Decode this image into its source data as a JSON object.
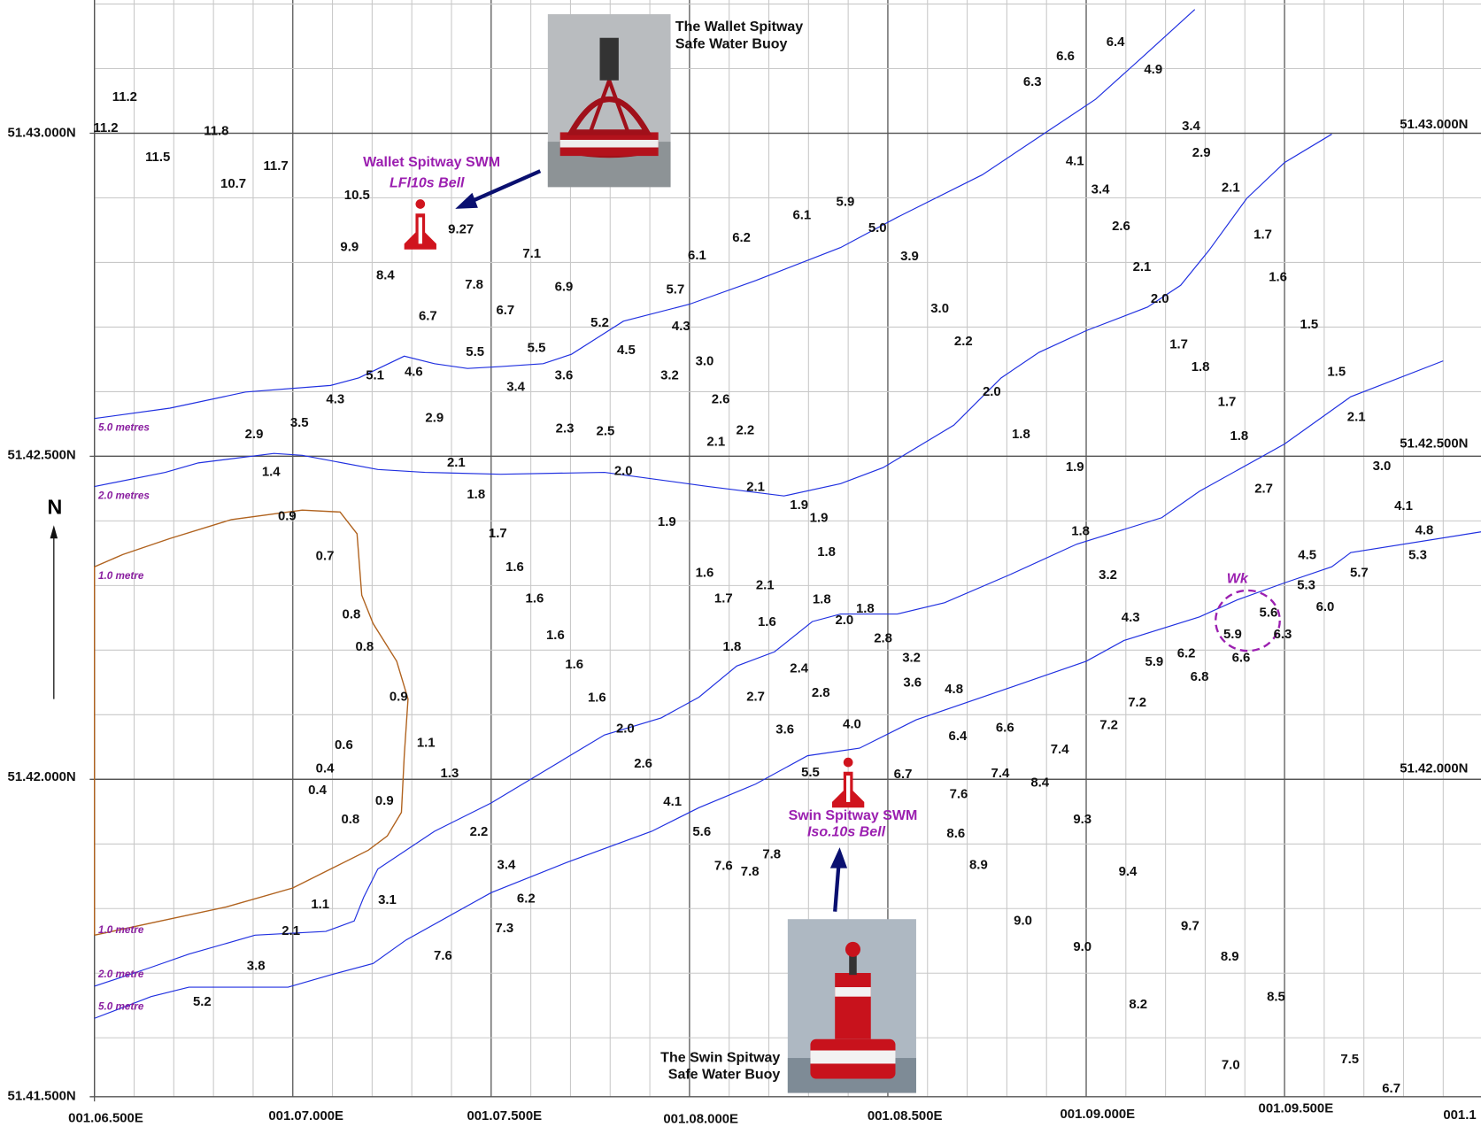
{
  "labels": {
    "lat_1": "51.43.000N",
    "lat_1_right": "51.43.000N",
    "lat_2": "51.42.500N",
    "lat_2_right": "51.42.500N",
    "lat_3": "51.42.000N",
    "lat_3_right": "51.42.000N",
    "lat_4": "51.41.500N",
    "lon_1": "001.06.500E",
    "lon_2": "001.07.000E",
    "lon_3": "001.07.500E",
    "lon_4": "001.08.000E",
    "lon_5": "001.08.500E",
    "lon_6": "001.09.000E",
    "lon_7": "001.09.500E",
    "lon_8": "001.1",
    "north": "N",
    "contour_5_top": "5.0 metres",
    "contour_2_top": "2.0 metres",
    "contour_1_top": "1.0 metre",
    "contour_1_bottom": "1.0 metre",
    "contour_2_bottom": "2.0 metre",
    "contour_5_bottom": "5.0 metre",
    "wallet_name": "Wallet Spitway SWM",
    "wallet_light": "LFl10s Bell",
    "wallet_caption_1": "The Wallet Spitway",
    "wallet_caption_2": "Safe Water Buoy",
    "swin_name": "Swin Spitway SWM",
    "swin_light": "Iso.10s Bell",
    "swin_caption_1": "The Swin Spitway",
    "swin_caption_2": "Safe Water Buoy",
    "wreck": "Wk"
  },
  "soundings": [
    "11.2",
    "11.2",
    "11.8",
    "11.5",
    "10.7",
    "11.7",
    "10.5",
    "9.27",
    "9.9",
    "8.4",
    "7.1",
    "7.8",
    "6.9",
    "6.7",
    "6.7",
    "5.2",
    "4.5",
    "5.5",
    "5.5",
    "5.1",
    "4.6",
    "3.4",
    "3.6",
    "4.3",
    "3.5",
    "2.9",
    "2.9",
    "2.3",
    "2.5",
    "6.1",
    "6.2",
    "6.1",
    "5.9",
    "5.0",
    "3.9",
    "5.7",
    "4.3",
    "3.0",
    "3.2",
    "2.6",
    "2.2",
    "2.1",
    "3.0",
    "2.2",
    "2.0",
    "1.8",
    "6.6",
    "6.4",
    "4.9",
    "6.3",
    "3.4",
    "2.9",
    "4.1",
    "3.4",
    "2.1",
    "2.6",
    "1.7",
    "2.1",
    "1.6",
    "2.0",
    "1.5",
    "1.7",
    "1.8",
    "1.5",
    "1.7",
    "1.8",
    "2.1",
    "3.0",
    "2.7",
    "4.1",
    "4.8",
    "5.3",
    "1.9",
    "1.8",
    "3.2",
    "4.5",
    "5.7",
    "5.3",
    "6.0",
    "5.6",
    "5.9",
    "6.3",
    "6.6",
    "4.3",
    "6.2",
    "6.8",
    "5.9",
    "7.2",
    "7.2",
    "1.4",
    "2.1",
    "1.8",
    "2.0",
    "2.1",
    "1.9",
    "1.9",
    "0.9",
    "1.9",
    "1.7",
    "0.7",
    "1.8",
    "1.6",
    "1.6",
    "1.6",
    "2.1",
    "1.7",
    "1.8",
    "1.8",
    "2.0",
    "0.8",
    "1.6",
    "1.6",
    "2.8",
    "0.8",
    "1.8",
    "3.2",
    "1.6",
    "2.4",
    "3.6",
    "4.8",
    "2.7",
    "2.8",
    "0.9",
    "1.6",
    "2.0",
    "3.6",
    "4.0",
    "6.4",
    "6.6",
    "7.4",
    "0.6",
    "1.1",
    "2.6",
    "0.4",
    "1.3",
    "5.5",
    "6.7",
    "7.4",
    "8.4",
    "0.4",
    "0.9",
    "4.1",
    "7.6",
    "0.8",
    "9.3",
    "2.2",
    "5.6",
    "8.6",
    "3.4",
    "7.8",
    "7.6",
    "7.8",
    "8.9",
    "9.4",
    "1.1",
    "3.1",
    "6.2",
    "9.0",
    "9.7",
    "2.1",
    "7.3",
    "9.0",
    "3.8",
    "7.6",
    "8.9",
    "5.2",
    "8.5",
    "8.2",
    "7.0",
    "7.5",
    "6.7"
  ]
}
